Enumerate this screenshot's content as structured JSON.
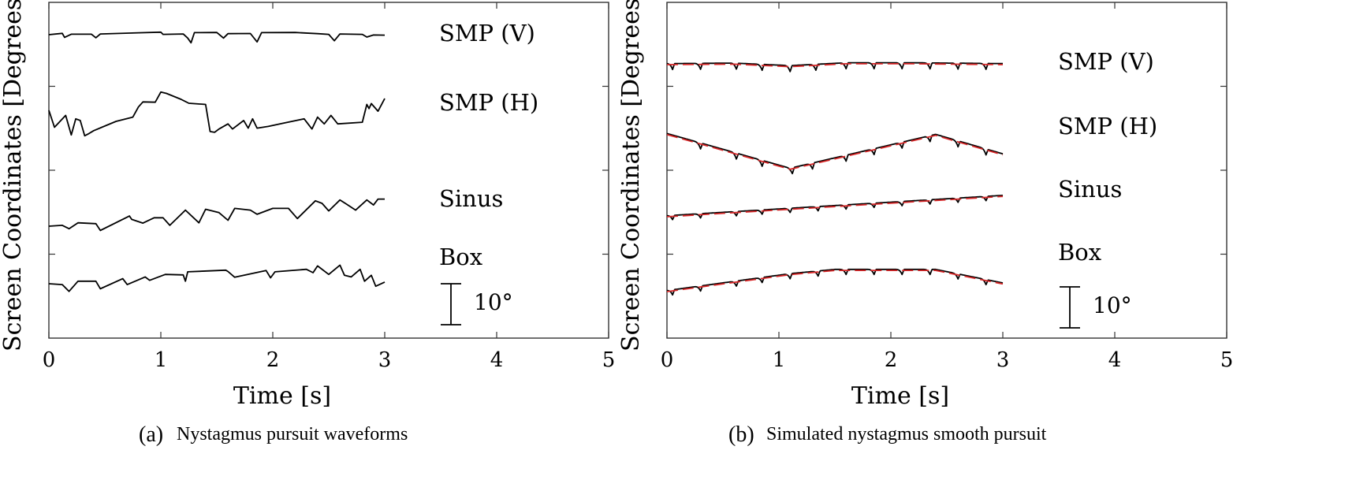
{
  "chart_data": [
    {
      "type": "line",
      "caption_label": "(a)",
      "caption_text": "Nystagmus pursuit waveforms",
      "xlabel": "Time [s]",
      "ylabel": "Screen Coordinates [Degrees]",
      "xlim": [
        0,
        5
      ],
      "xticks": [
        "0",
        "1",
        "2",
        "3",
        "4",
        "5"
      ],
      "ytick_count": 3,
      "grid": false,
      "y_units": "degrees relative to trace baseline",
      "scale_bar": {
        "label": "10°",
        "value": 10
      },
      "series": [
        {
          "name": "SMP (V)",
          "color": "#000000",
          "x": [
            0,
            0.12,
            0.14,
            0.2,
            0.38,
            0.42,
            0.46,
            0.8,
            1.0,
            1.02,
            1.2,
            1.24,
            1.27,
            1.3,
            1.5,
            1.56,
            1.6,
            1.8,
            1.86,
            1.9,
            2.2,
            2.4,
            2.5,
            2.55,
            2.6,
            2.8,
            2.84,
            2.9,
            3.0
          ],
          "values": [
            0,
            0.8,
            -1.6,
            0.3,
            0.3,
            -1.8,
            0.4,
            1.1,
            1.5,
            0.2,
            0.4,
            -2,
            -4.8,
            1.2,
            1.3,
            -2,
            0.6,
            0.7,
            -4.3,
            1.2,
            1.3,
            0.6,
            0.2,
            -3.6,
            0.4,
            0.2,
            -1.4,
            -0.2,
            -0.3
          ]
        },
        {
          "name": "SMP (H)",
          "color": "#000000",
          "x": [
            0,
            0.05,
            0.15,
            0.2,
            0.24,
            0.28,
            0.32,
            0.35,
            0.4,
            0.6,
            0.75,
            0.8,
            0.84,
            0.95,
            1.0,
            1.05,
            1.18,
            1.25,
            1.4,
            1.44,
            1.48,
            1.52,
            1.6,
            1.64,
            1.74,
            1.78,
            1.82,
            1.86,
            1.96,
            2.1,
            2.28,
            2.35,
            2.4,
            2.46,
            2.52,
            2.58,
            2.8,
            2.84,
            2.86,
            2.88,
            2.94,
            3.0
          ],
          "values": [
            0,
            -10,
            -3,
            -14.5,
            -5,
            -6,
            -15,
            -14,
            -12,
            -6.5,
            -4,
            2,
            5,
            4.8,
            10.8,
            10,
            6.5,
            4.2,
            3.5,
            -12.5,
            -13,
            -11,
            -8,
            -11,
            -6,
            -10.5,
            -5,
            -10.5,
            -9.5,
            -7.5,
            -5,
            -11,
            -4,
            -8,
            -3,
            -8,
            -7,
            3.5,
            1,
            4,
            -0.5,
            7
          ]
        },
        {
          "name": "Sinus",
          "color": "#000000",
          "x": [
            0,
            0.12,
            0.18,
            0.26,
            0.42,
            0.46,
            0.72,
            0.74,
            0.84,
            0.94,
            1.02,
            1.08,
            1.22,
            1.34,
            1.4,
            1.52,
            1.6,
            1.66,
            1.8,
            1.86,
            2.0,
            2.14,
            2.22,
            2.38,
            2.44,
            2.5,
            2.6,
            2.66,
            2.74,
            2.84,
            2.9,
            2.94,
            3.0
          ],
          "values": [
            0,
            0.5,
            -1.5,
            2,
            1.5,
            -2.5,
            6,
            4,
            1.8,
            5,
            5,
            0.5,
            9.5,
            2,
            10,
            8,
            3.5,
            10.5,
            9.5,
            7,
            10.5,
            10.5,
            4.5,
            15,
            13.5,
            9,
            15.5,
            13,
            9.5,
            15.5,
            12.5,
            16,
            16
          ]
        },
        {
          "name": "Box",
          "color": "#000000",
          "x": [
            0,
            0.12,
            0.18,
            0.26,
            0.42,
            0.46,
            0.66,
            0.7,
            0.86,
            0.9,
            1.04,
            1.2,
            1.22,
            1.24,
            1.58,
            1.6,
            1.66,
            1.94,
            1.98,
            2.02,
            2.3,
            2.36,
            2.4,
            2.5,
            2.6,
            2.64,
            2.7,
            2.78,
            2.82,
            2.88,
            2.92,
            3.0
          ],
          "values": [
            0,
            -0.5,
            -4.5,
            1.5,
            1.5,
            -3,
            3,
            -0.5,
            4,
            2,
            5.5,
            5.2,
            1.5,
            7,
            8,
            7.2,
            3.8,
            7.8,
            3.5,
            7,
            8.5,
            6.5,
            10.5,
            5.5,
            11,
            5,
            4,
            8.5,
            1.5,
            5,
            -1.5,
            1
          ]
        }
      ]
    },
    {
      "type": "line",
      "caption_label": "(b)",
      "caption_text": "Simulated nystagmus smooth pursuit",
      "xlabel": "Time [s]",
      "ylabel": "Screen Coordinates [Degrees]",
      "xlim": [
        0,
        5
      ],
      "xticks": [
        "0",
        "1",
        "2",
        "3",
        "4",
        "5"
      ],
      "ytick_count": 3,
      "grid": false,
      "y_units": "degrees relative to trace baseline",
      "scale_bar": {
        "label": "10°",
        "value": 10
      },
      "series": [
        {
          "name": "SMP (V)",
          "color": "#000000",
          "ref_color": "#d62728",
          "ref_x": [
            0,
            0.6,
            1.1,
            1.6,
            2.2,
            3.0
          ],
          "ref_values": [
            0,
            0.3,
            -1.2,
            0.5,
            0.5,
            0
          ],
          "saccade_times": [
            0.05,
            0.3,
            0.62,
            0.85,
            1.1,
            1.33,
            1.6,
            1.85,
            2.1,
            2.35,
            2.6,
            2.85
          ],
          "saccade_depth": 3.5
        },
        {
          "name": "SMP (H)",
          "color": "#000000",
          "ref_color": "#d62728",
          "ref_x": [
            0,
            1.1,
            2.4,
            3.0
          ],
          "ref_values": [
            2,
            -18.5,
            1.5,
            -10
          ],
          "saccade_times": [
            0.3,
            0.62,
            0.85,
            1.12,
            1.3,
            1.6,
            1.85,
            2.1,
            2.35,
            2.6,
            2.85
          ],
          "saccade_depth": 3.5
        },
        {
          "name": "Sinus",
          "color": "#000000",
          "ref_color": "#d62728",
          "ref_x": [
            0,
            3.0
          ],
          "ref_values": [
            0,
            12
          ],
          "saccade_times": [
            0.05,
            0.3,
            0.62,
            0.85,
            1.1,
            1.35,
            1.6,
            1.85,
            2.1,
            2.35,
            2.6,
            2.85
          ],
          "saccade_depth": 2.5
        },
        {
          "name": "Box",
          "color": "#000000",
          "ref_color": "#d62728",
          "ref_x": [
            0,
            1.1,
            1.5,
            2.4,
            3.0
          ],
          "ref_values": [
            0,
            10,
            12.5,
            12.5,
            4.5
          ],
          "saccade_times": [
            0.05,
            0.3,
            0.62,
            0.85,
            1.1,
            1.35,
            1.6,
            1.85,
            2.1,
            2.35,
            2.6,
            2.85
          ],
          "saccade_depth": 3
        }
      ]
    }
  ]
}
